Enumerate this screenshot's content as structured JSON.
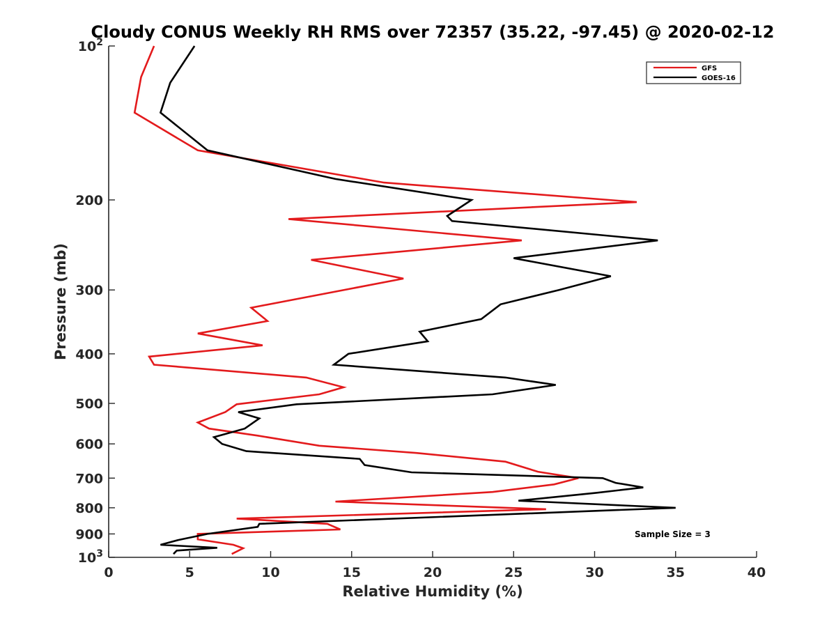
{
  "chart_data": {
    "type": "line",
    "title": "Cloudy CONUS Weekly RH RMS over 72357 (35.22, -97.45) @ 2020-02-12",
    "xlabel": "Relative Humidity (%)",
    "ylabel": "Pressure (mb)",
    "xlim": [
      0,
      40
    ],
    "ylim": [
      100,
      1000
    ],
    "y_scale": "log",
    "y_reversed": true,
    "grid": false,
    "legend_position": "top-right",
    "x_ticks": [
      "0",
      "5",
      "10",
      "15",
      "20",
      "25",
      "30",
      "35",
      "40"
    ],
    "y_ticks": [
      {
        "value": 100,
        "label": "10",
        "sup": "2"
      },
      {
        "value": 200,
        "label": "200"
      },
      {
        "value": 300,
        "label": "300"
      },
      {
        "value": 400,
        "label": "400"
      },
      {
        "value": 500,
        "label": "500"
      },
      {
        "value": 600,
        "label": "600"
      },
      {
        "value": 700,
        "label": "700"
      },
      {
        "value": 800,
        "label": "800"
      },
      {
        "value": 900,
        "label": "900"
      },
      {
        "value": 1000,
        "label": "10",
        "sup": "3"
      }
    ],
    "annotation": "Sample Size = 3",
    "series": [
      {
        "name": "GFS",
        "color": "#e31a1c",
        "points": [
          [
            2.8,
            100
          ],
          [
            2.0,
            115
          ],
          [
            1.6,
            135
          ],
          [
            5.5,
            160
          ],
          [
            17,
            185
          ],
          [
            32.6,
            202
          ],
          [
            11.1,
            218
          ],
          [
            25.5,
            240
          ],
          [
            12.5,
            262
          ],
          [
            18.2,
            285
          ],
          [
            8.8,
            325
          ],
          [
            9.8,
            345
          ],
          [
            5.5,
            365
          ],
          [
            9.5,
            385
          ],
          [
            2.5,
            405
          ],
          [
            2.8,
            420
          ],
          [
            12.2,
            445
          ],
          [
            14.5,
            465
          ],
          [
            13,
            480
          ],
          [
            7.9,
            502
          ],
          [
            7.2,
            520
          ],
          [
            5.5,
            545
          ],
          [
            6.2,
            560
          ],
          [
            9.2,
            578
          ],
          [
            13.0,
            605
          ],
          [
            19.0,
            625
          ],
          [
            24.5,
            650
          ],
          [
            26.5,
            680
          ],
          [
            29.0,
            700
          ],
          [
            27.5,
            720
          ],
          [
            23.7,
            745
          ],
          [
            14,
            778
          ],
          [
            27,
            805
          ],
          [
            7.9,
            840
          ],
          [
            13.5,
            860
          ],
          [
            14.3,
            882
          ],
          [
            5.5,
            900
          ],
          [
            5.5,
            922
          ],
          [
            7.7,
            945
          ],
          [
            8.3,
            960
          ],
          [
            7.6,
            985
          ]
        ]
      },
      {
        "name": "GOES-16",
        "color": "#000000",
        "points": [
          [
            5.3,
            100
          ],
          [
            3.8,
            118
          ],
          [
            3.2,
            135
          ],
          [
            6.1,
            160
          ],
          [
            14,
            182
          ],
          [
            22.4,
            200
          ],
          [
            20.9,
            215
          ],
          [
            21.2,
            220
          ],
          [
            33.9,
            240
          ],
          [
            25,
            260
          ],
          [
            31,
            282
          ],
          [
            27.8,
            300
          ],
          [
            24.2,
            320
          ],
          [
            23.0,
            342
          ],
          [
            19.2,
            362
          ],
          [
            19.7,
            378
          ],
          [
            14.8,
            400
          ],
          [
            13.9,
            420
          ],
          [
            24.5,
            445
          ],
          [
            27.6,
            460
          ],
          [
            23.7,
            480
          ],
          [
            11.6,
            502
          ],
          [
            8.0,
            520
          ],
          [
            9.3,
            535
          ],
          [
            8.4,
            560
          ],
          [
            6.5,
            582
          ],
          [
            7.0,
            600
          ],
          [
            8.5,
            620
          ],
          [
            15.5,
            642
          ],
          [
            15.8,
            660
          ],
          [
            18.7,
            682
          ],
          [
            30.5,
            700
          ],
          [
            31.3,
            715
          ],
          [
            33.0,
            730
          ],
          [
            30.1,
            748
          ],
          [
            25.3,
            775
          ],
          [
            35.0,
            800
          ],
          [
            9.3,
            860
          ],
          [
            9.2,
            872
          ],
          [
            6.1,
            900
          ],
          [
            4.3,
            925
          ],
          [
            3.2,
            945
          ],
          [
            6.7,
            958
          ],
          [
            4.2,
            970
          ],
          [
            4.0,
            985
          ]
        ]
      }
    ]
  }
}
